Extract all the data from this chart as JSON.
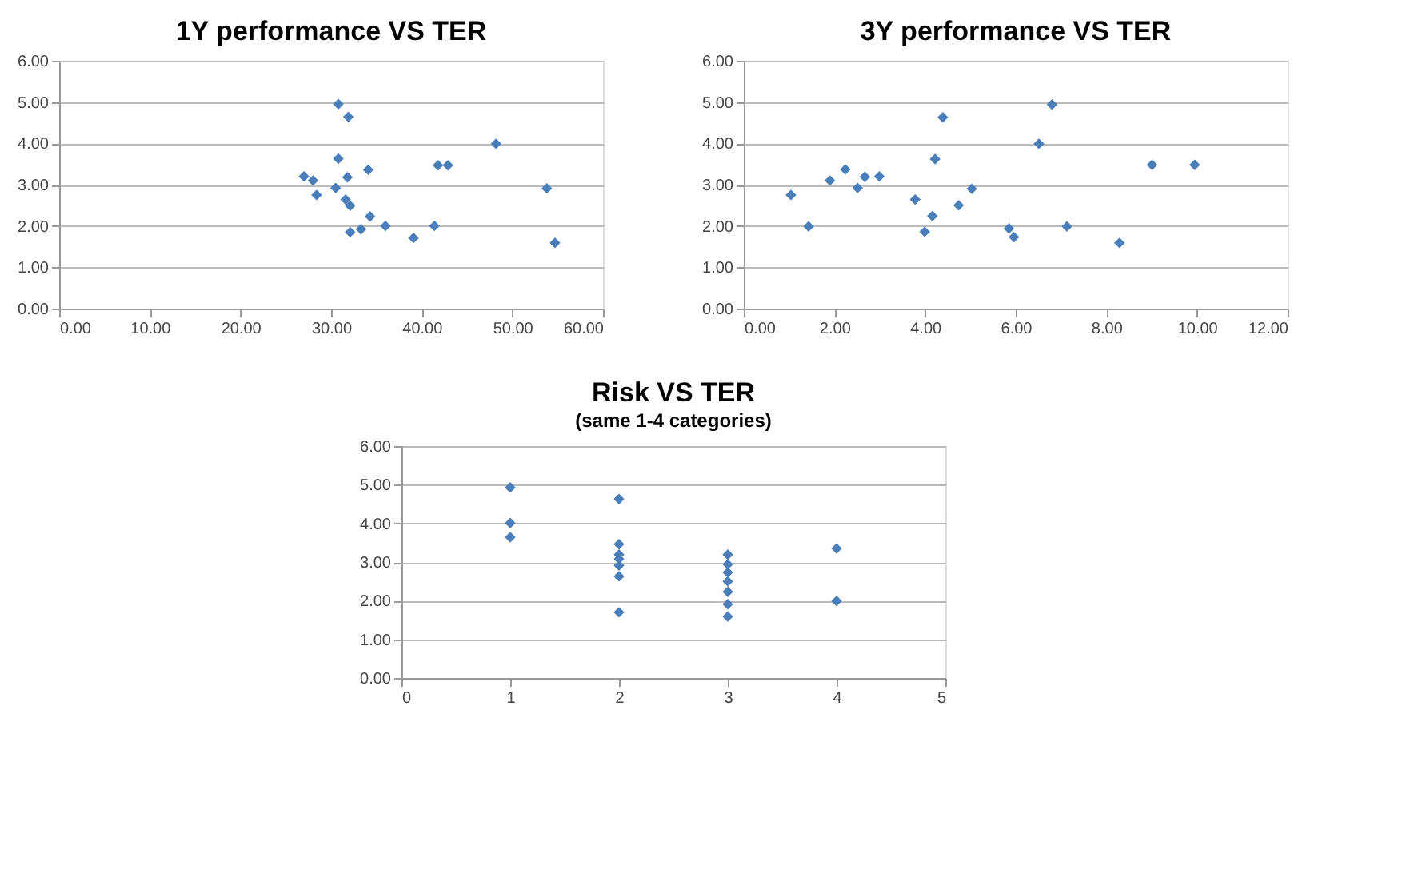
{
  "chart_data": [
    {
      "type": "scatter",
      "title": "1Y performance VS TER",
      "marker": "diamond",
      "grid": "y",
      "color": "#4a7ebb",
      "x": [
        30.8,
        31.9,
        48.2,
        30.8,
        34.1,
        41.8,
        42.9,
        27.0,
        28.0,
        31.8,
        30.5,
        28.4,
        31.6,
        32.1,
        53.8,
        34.3,
        36.0,
        41.4,
        32.1,
        33.3,
        39.1,
        54.7
      ],
      "values": [
        4.95,
        4.64,
        3.99,
        3.63,
        3.36,
        3.47,
        3.47,
        3.2,
        3.1,
        3.18,
        2.92,
        2.75,
        2.64,
        2.49,
        2.91,
        2.23,
        2.0,
        2.0,
        1.85,
        1.92,
        1.71,
        1.59
      ],
      "xlim": [
        0,
        60
      ],
      "ylim": [
        0,
        6
      ],
      "xticks": [
        {
          "value": 0,
          "label": "0.00"
        },
        {
          "value": 10,
          "label": "10.00"
        },
        {
          "value": 20,
          "label": "20.00"
        },
        {
          "value": 30,
          "label": "30.00"
        },
        {
          "value": 40,
          "label": "40.00"
        },
        {
          "value": 50,
          "label": "50.00"
        },
        {
          "value": 60,
          "label": "60.00"
        }
      ],
      "yticks": [
        {
          "value": 0,
          "label": "0.00"
        },
        {
          "value": 1,
          "label": "1.00"
        },
        {
          "value": 2,
          "label": "2.00"
        },
        {
          "value": 3,
          "label": "3.00"
        },
        {
          "value": 4,
          "label": "4.00"
        },
        {
          "value": 5,
          "label": "5.00"
        },
        {
          "value": 6,
          "label": "6.00"
        }
      ]
    },
    {
      "type": "scatter",
      "title": "3Y performance VS TER",
      "marker": "diamond",
      "grid": "y",
      "color": "#4a7ebb",
      "x": [
        1.04,
        1.43,
        1.9,
        2.24,
        2.51,
        2.67,
        2.99,
        3.78,
        3.99,
        4.16,
        4.22,
        4.39,
        4.74,
        5.03,
        5.85,
        5.96,
        6.51,
        6.8,
        7.13,
        8.29,
        9.01,
        9.95
      ],
      "values": [
        2.75,
        1.99,
        3.1,
        3.37,
        2.92,
        3.19,
        3.2,
        2.64,
        1.86,
        2.24,
        3.62,
        4.63,
        2.5,
        2.9,
        1.94,
        1.73,
        3.99,
        4.94,
        1.99,
        1.59,
        3.48,
        3.48
      ],
      "xlim": [
        0,
        12
      ],
      "ylim": [
        0,
        6
      ],
      "xticks": [
        {
          "value": 0,
          "label": "0.00"
        },
        {
          "value": 2,
          "label": "2.00"
        },
        {
          "value": 4,
          "label": "4.00"
        },
        {
          "value": 6,
          "label": "6.00"
        },
        {
          "value": 8,
          "label": "8.00"
        },
        {
          "value": 10,
          "label": "10.00"
        },
        {
          "value": 12,
          "label": "12.00"
        }
      ],
      "yticks": [
        {
          "value": 0,
          "label": "0.00"
        },
        {
          "value": 1,
          "label": "1.00"
        },
        {
          "value": 2,
          "label": "2.00"
        },
        {
          "value": 3,
          "label": "3.00"
        },
        {
          "value": 4,
          "label": "4.00"
        },
        {
          "value": 5,
          "label": "5.00"
        },
        {
          "value": 6,
          "label": "6.00"
        }
      ]
    },
    {
      "type": "scatter",
      "title": "Risk VS TER",
      "subtitle": "(same 1-4 categories)",
      "marker": "diamond",
      "grid": "y",
      "color": "#4a7ebb",
      "x": [
        1,
        1,
        1,
        2,
        2,
        2,
        2,
        2,
        2,
        2,
        3,
        3,
        3,
        3,
        3,
        3,
        3,
        4,
        4
      ],
      "values": [
        4.93,
        4.01,
        3.64,
        4.63,
        3.46,
        3.19,
        3.08,
        2.91,
        2.63,
        1.7,
        3.19,
        2.94,
        2.73,
        2.5,
        2.23,
        1.91,
        1.59,
        3.35,
        1.99
      ],
      "xlim": [
        0,
        5
      ],
      "ylim": [
        0,
        6
      ],
      "xticks": [
        0,
        1,
        2,
        3,
        4,
        5
      ],
      "yticks": [
        {
          "value": 0,
          "label": "0.00"
        },
        {
          "value": 1,
          "label": "1.00"
        },
        {
          "value": 2,
          "label": "2.00"
        },
        {
          "value": 3,
          "label": "3.00"
        },
        {
          "value": 4,
          "label": "4.00"
        },
        {
          "value": 5,
          "label": "5.00"
        },
        {
          "value": 6,
          "label": "6.00"
        }
      ]
    }
  ]
}
